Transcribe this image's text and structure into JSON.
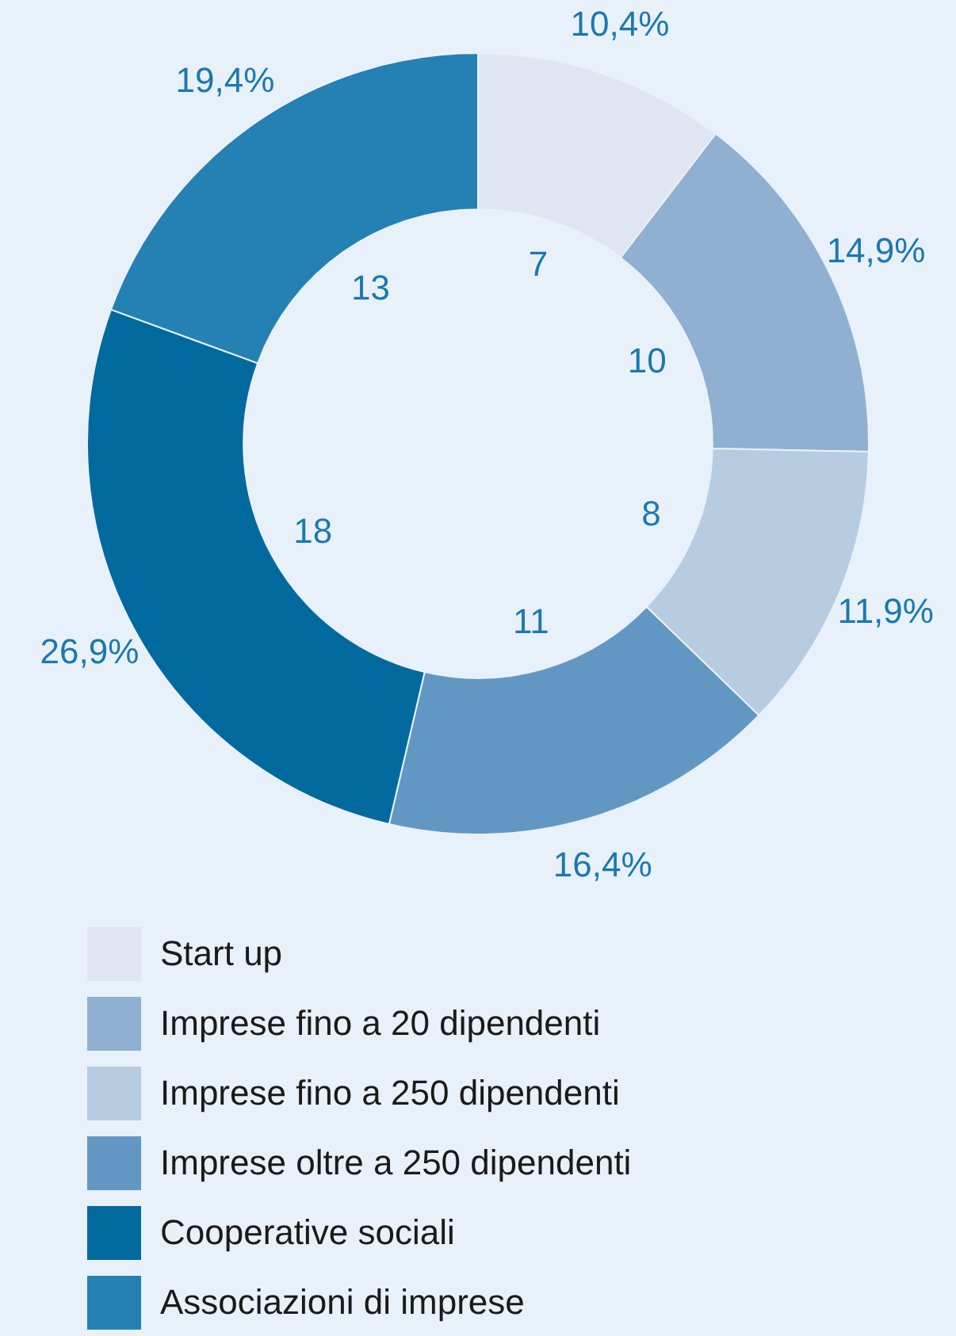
{
  "chart_data": {
    "type": "donut",
    "categories": [
      "Start up",
      "Imprese fino a 20 dipendenti",
      "Imprese fino a 250 dipendenti",
      "Imprese oltre a 250 dipendenti",
      "Cooperative sociali",
      "Associazioni di imprese"
    ],
    "values": [
      10.4,
      14.9,
      11.9,
      16.4,
      26.9,
      19.4
    ],
    "colors": [
      "#dfe6f1",
      "#8fb0d0",
      "#b7cbe1",
      "#6397c3",
      "#006a9e",
      "#2580b3"
    ],
    "value_labels": [
      "10,4%",
      "14,9%",
      "11,9%",
      "16,4%",
      "26,9%",
      "19,4%"
    ],
    "annotations": [
      "7",
      "10",
      "8",
      "11",
      "18",
      "13"
    ],
    "legend": "bottom"
  }
}
